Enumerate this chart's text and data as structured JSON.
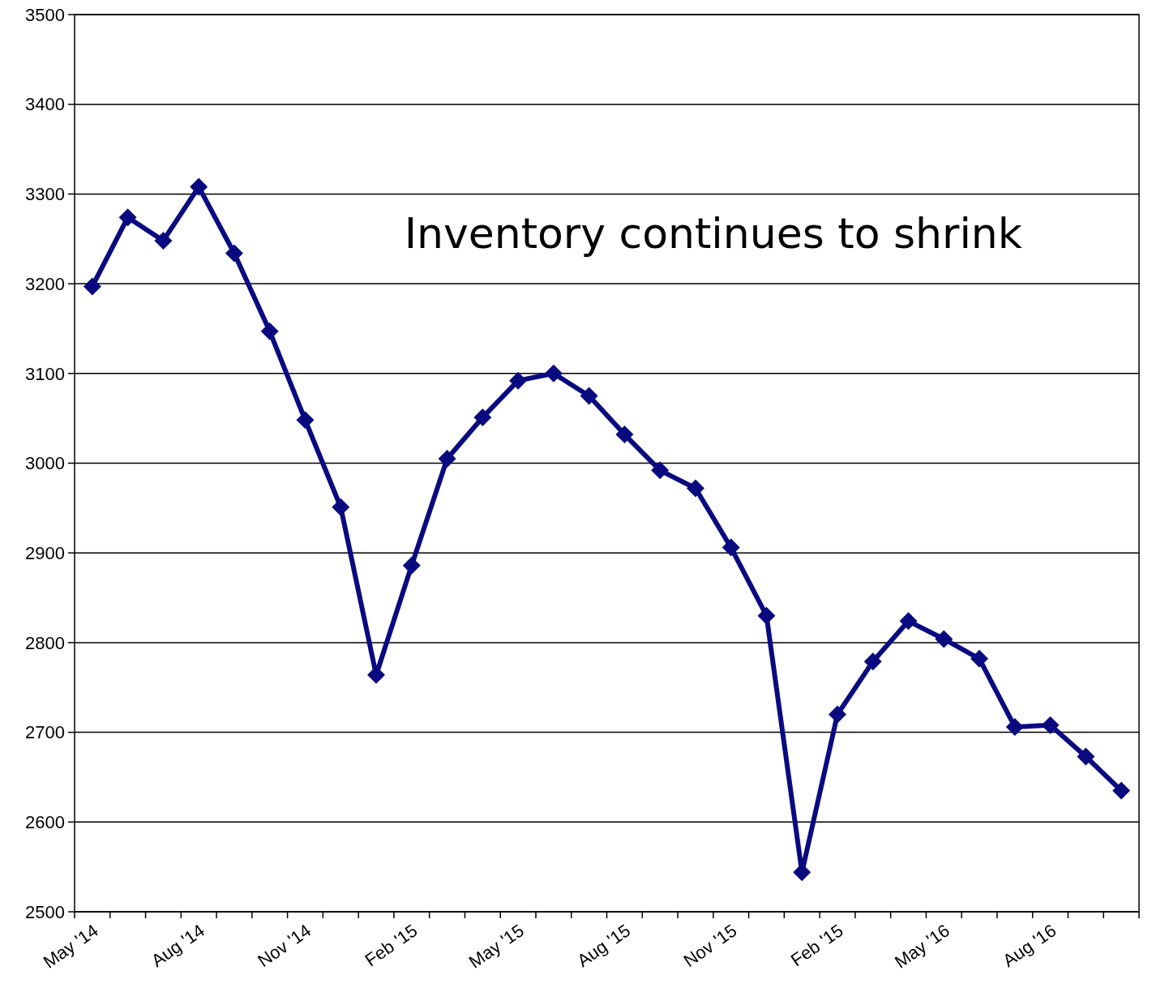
{
  "chart_data": {
    "type": "line",
    "categories": [
      "May '14",
      null,
      null,
      "Aug '14",
      null,
      null,
      "Nov '14",
      null,
      null,
      "Feb '15",
      null,
      null,
      "May '15",
      null,
      null,
      "Aug '15",
      null,
      null,
      "Nov '15",
      null,
      null,
      "Feb '15",
      null,
      null,
      "May '16",
      null,
      null,
      "Aug '16",
      null,
      null
    ],
    "series": [
      {
        "color": "#0a0a80",
        "values": [
          3197,
          3274,
          3248,
          3308,
          3234,
          3147,
          3048,
          2951,
          2764,
          2886,
          3005,
          3051,
          3092,
          3100,
          3075,
          3032,
          2992,
          2972,
          2906,
          2830,
          2544,
          2720,
          2779,
          2824,
          2804,
          2782,
          2706,
          2708,
          2673,
          2635
        ]
      }
    ],
    "ylim": [
      2500,
      3500
    ],
    "yticks": [
      2500,
      2600,
      2700,
      2800,
      2900,
      3000,
      3100,
      3200,
      3300,
      3400,
      3500
    ],
    "grid": "y",
    "marker": "diamond",
    "line_style": "solid",
    "annotations": [
      "Inventory continues to shrink"
    ]
  }
}
